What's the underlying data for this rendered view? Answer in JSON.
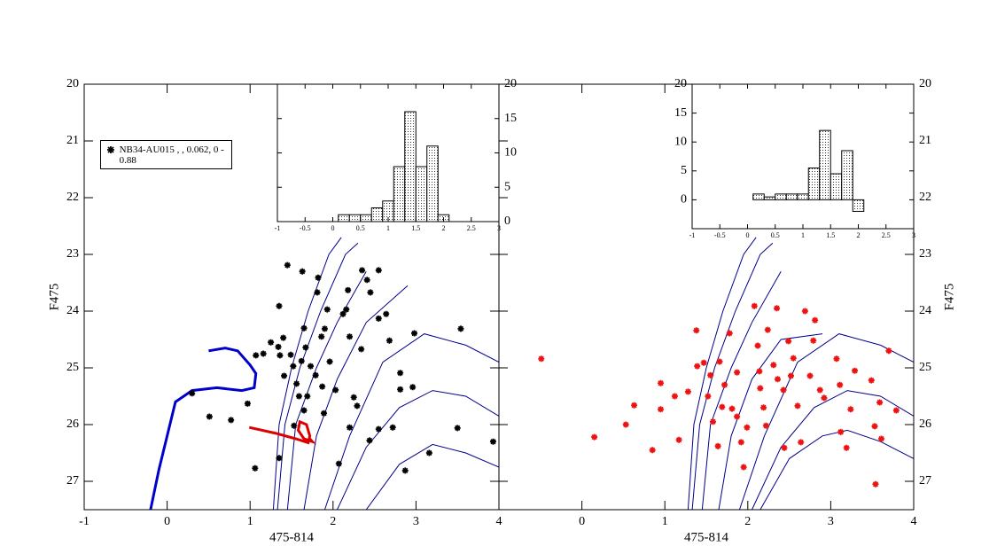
{
  "chart_data": [
    {
      "type": "scatter",
      "xlabel": "475-814",
      "ylabel": "F475",
      "xlim": [
        -1,
        4
      ],
      "ylim": [
        20,
        27.5
      ],
      "y_inverted": true,
      "xticks": [
        -1,
        0,
        1,
        2,
        3,
        4
      ],
      "yticks": [
        20,
        21,
        22,
        23,
        24,
        25,
        26,
        27
      ],
      "legend_loc": "upper left",
      "series": [
        {
          "name": "NB34-AU015 ,   , 0.062, 0 - 0.88",
          "color": "#000000",
          "x": [
            1.45,
            1.35,
            1.63,
            1.82,
            1.81,
            1.9,
            1.93,
            2.12,
            2.35,
            2.41,
            2.45,
            2.18,
            2.16,
            2.2,
            2.34,
            2.55,
            2.55,
            2.64,
            2.68,
            2.81,
            2.81,
            2.98,
            2.96,
            3.54,
            1.36,
            1.25,
            1.4,
            1.49,
            1.52,
            1.41,
            1.56,
            1.67,
            1.62,
            1.73,
            1.79,
            1.86,
            1.87,
            1.89,
            1.96,
            2.03,
            1.59,
            1.69,
            1.65,
            2.25,
            2.29,
            2.2,
            2.44,
            2.07,
            1.35,
            1.06,
            0.97,
            0.77,
            0.51,
            0.3,
            1.16,
            1.07,
            3.5,
            3.93,
            3.16,
            2.87,
            2.72,
            2.55,
            1.53,
            1.65,
            1.34
          ],
          "y": [
            23.19,
            23.91,
            23.3,
            23.41,
            23.67,
            24.31,
            23.97,
            24.05,
            23.28,
            23.45,
            23.67,
            23.63,
            23.97,
            24.45,
            24.67,
            23.28,
            24.13,
            24.05,
            24.52,
            25.09,
            25.38,
            24.39,
            25.34,
            24.31,
            24.78,
            24.55,
            24.47,
            24.77,
            24.97,
            25.14,
            25.28,
            24.64,
            24.88,
            24.97,
            25.13,
            24.45,
            25.33,
            25.8,
            24.89,
            25.39,
            25.5,
            25.5,
            25.75,
            25.52,
            25.67,
            26.05,
            26.28,
            26.69,
            26.59,
            26.77,
            25.63,
            25.92,
            25.86,
            25.45,
            24.75,
            24.78,
            26.06,
            26.3,
            26.5,
            26.81,
            26.05,
            26.08,
            26.02,
            24.3,
            24.63
          ]
        }
      ],
      "lines": [
        {
          "color": "#00008b",
          "linewidth": 1,
          "x": [
            1.28,
            1.35,
            1.5,
            1.7,
            1.95,
            2.1
          ],
          "y": [
            27.5,
            26,
            25,
            24,
            23,
            22.7
          ]
        },
        {
          "color": "#00008b",
          "linewidth": 1,
          "x": [
            1.33,
            1.42,
            1.6,
            1.85,
            2.15,
            2.3
          ],
          "y": [
            27.5,
            26,
            25,
            24,
            23,
            22.8
          ]
        },
        {
          "color": "#00008b",
          "linewidth": 1,
          "x": [
            1.45,
            1.55,
            1.8,
            2.05,
            2.4
          ],
          "y": [
            27.5,
            26,
            25,
            24.2,
            23.3
          ]
        },
        {
          "color": "#00008b",
          "linewidth": 1,
          "x": [
            1.65,
            1.8,
            2.05,
            2.4,
            2.9
          ],
          "y": [
            27.5,
            26.2,
            25.2,
            24.2,
            23.55
          ]
        },
        {
          "color": "#00008b",
          "linewidth": 1,
          "x": [
            1.9,
            2.2,
            2.6,
            3.1,
            3.6,
            4.0
          ],
          "y": [
            27.5,
            26.2,
            24.9,
            24.4,
            24.6,
            24.9
          ]
        },
        {
          "color": "#00008b",
          "linewidth": 1,
          "x": [
            2.05,
            2.4,
            2.8,
            3.2,
            3.6,
            4.0
          ],
          "y": [
            27.5,
            26.4,
            25.7,
            25.4,
            25.5,
            25.85
          ]
        },
        {
          "color": "#00008b",
          "linewidth": 1,
          "x": [
            2.4,
            2.8,
            3.2,
            3.6,
            4.0
          ],
          "y": [
            27.5,
            26.7,
            26.35,
            26.5,
            26.75
          ]
        },
        {
          "color": "#0000cc",
          "linewidth": 3,
          "x": [
            -0.2,
            -0.1,
            0.0,
            0.1,
            0.3,
            0.6,
            0.9,
            1.05,
            1.07,
            1.0,
            0.85,
            0.7,
            0.5
          ],
          "y": [
            27.5,
            26.8,
            26.2,
            25.6,
            25.4,
            25.35,
            25.4,
            25.35,
            25.1,
            24.95,
            24.7,
            24.65,
            24.7
          ]
        },
        {
          "color": "#dd0000",
          "linewidth": 3,
          "x": [
            0.99,
            1.3,
            1.55,
            1.7,
            1.72,
            1.68,
            1.6,
            1.58,
            1.65,
            1.75,
            1.72
          ],
          "y": [
            26.05,
            26.15,
            26.25,
            26.32,
            26.2,
            26.0,
            25.95,
            26.1,
            26.25,
            26.3,
            26.25
          ]
        }
      ]
    },
    {
      "type": "scatter",
      "xlabel": "475-814",
      "ylabel": "F475",
      "xlim": [
        -1,
        4
      ],
      "ylim": [
        20,
        27.5
      ],
      "y_inverted": true,
      "xticks": [
        0,
        1,
        2,
        3,
        4
      ],
      "yticks": [
        20,
        21,
        22,
        23,
        24,
        25,
        26,
        27
      ],
      "series": [
        {
          "color": "#ee1111",
          "x": [
            -0.49,
            0.15,
            0.53,
            0.63,
            0.85,
            0.95,
            0.95,
            1.12,
            1.17,
            1.28,
            1.39,
            1.38,
            1.47,
            1.52,
            1.55,
            1.58,
            1.64,
            1.66,
            1.72,
            1.78,
            1.81,
            1.87,
            1.92,
            1.95,
            1.99,
            2.08,
            2.12,
            2.14,
            2.15,
            2.19,
            2.22,
            2.24,
            2.31,
            2.35,
            2.36,
            2.43,
            2.44,
            2.49,
            2.52,
            2.55,
            2.6,
            2.64,
            2.69,
            2.75,
            2.79,
            2.81,
            2.87,
            2.92,
            3.07,
            3.12,
            3.11,
            3.19,
            3.24,
            3.29,
            3.49,
            3.53,
            3.54,
            3.59,
            3.61,
            3.7,
            3.79,
            1.69,
            1.87
          ],
          "y": [
            24.84,
            26.22,
            26.0,
            25.66,
            26.45,
            25.27,
            25.73,
            25.5,
            26.27,
            25.42,
            24.97,
            24.34,
            24.91,
            25.5,
            25.13,
            25.95,
            26.38,
            24.89,
            25.3,
            24.39,
            25.72,
            25.08,
            26.31,
            26.75,
            26.05,
            23.91,
            24.61,
            25.06,
            25.36,
            25.7,
            26.02,
            24.33,
            24.95,
            23.95,
            25.2,
            25.39,
            26.41,
            24.53,
            25.14,
            24.83,
            25.67,
            26.31,
            24.0,
            25.14,
            24.52,
            24.16,
            25.39,
            25.53,
            24.84,
            26.13,
            25.3,
            26.41,
            25.73,
            25.05,
            25.22,
            26.03,
            27.05,
            25.61,
            26.25,
            24.7,
            25.75,
            25.69,
            25.86
          ]
        }
      ],
      "lines": [
        {
          "color": "#00008b",
          "linewidth": 1,
          "x": [
            1.28,
            1.35,
            1.5,
            1.7,
            1.95,
            2.1
          ],
          "y": [
            27.5,
            26,
            25,
            24,
            23,
            22.7
          ]
        },
        {
          "color": "#00008b",
          "linewidth": 1,
          "x": [
            1.33,
            1.42,
            1.6,
            1.85,
            2.15,
            2.3
          ],
          "y": [
            27.5,
            26,
            25,
            24,
            23,
            22.8
          ]
        },
        {
          "color": "#00008b",
          "linewidth": 1,
          "x": [
            1.45,
            1.55,
            1.8,
            2.05,
            2.4
          ],
          "y": [
            27.5,
            26,
            25,
            24.2,
            23.3
          ]
        },
        {
          "color": "#00008b",
          "linewidth": 1,
          "x": [
            1.65,
            1.8,
            2.05,
            2.4,
            2.9
          ],
          "y": [
            27.5,
            26.2,
            25.2,
            24.5,
            24.4
          ]
        },
        {
          "color": "#00008b",
          "linewidth": 1,
          "x": [
            1.9,
            2.2,
            2.6,
            3.1,
            3.6,
            4.0
          ],
          "y": [
            27.5,
            26.2,
            24.9,
            24.4,
            24.6,
            24.9
          ]
        },
        {
          "color": "#00008b",
          "linewidth": 1,
          "x": [
            2.05,
            2.4,
            2.8,
            3.2,
            3.6,
            4.0
          ],
          "y": [
            27.5,
            26.4,
            25.7,
            25.4,
            25.5,
            25.85
          ]
        },
        {
          "color": "#00008b",
          "linewidth": 1,
          "x": [
            2.15,
            2.5,
            2.9,
            3.2,
            3.6,
            4.0
          ],
          "y": [
            27.5,
            26.6,
            26.2,
            26.1,
            26.3,
            26.6
          ]
        }
      ]
    },
    {
      "type": "histogram",
      "xlim": [
        -1,
        3
      ],
      "ylim": [
        0,
        20
      ],
      "xticks": [
        -1,
        -0.5,
        0,
        0.5,
        1,
        1.5,
        2,
        2.5,
        3
      ],
      "yticks": [
        0,
        5,
        10,
        15,
        20
      ],
      "bins": [
        0.1,
        0.3,
        0.5,
        0.7,
        0.9,
        1.1,
        1.3,
        1.5,
        1.7,
        1.9,
        2.1
      ],
      "counts": [
        1,
        1,
        1,
        2,
        3,
        8,
        16,
        8,
        11,
        1
      ]
    },
    {
      "type": "histogram",
      "xlim": [
        -1,
        3
      ],
      "ylim": [
        -5,
        20
      ],
      "xticks": [
        -1,
        -0.5,
        0,
        0.5,
        1,
        1.5,
        2,
        2.5,
        3
      ],
      "yticks": [
        0,
        5,
        10,
        15,
        20
      ],
      "bins": [
        -0.5,
        -0.3,
        -0.1,
        0.1,
        0.3,
        0.5,
        0.7,
        0.9,
        1.1,
        1.3,
        1.5,
        1.7,
        1.9,
        2.1
      ],
      "counts": [
        0,
        0,
        0,
        1,
        0.5,
        1,
        1,
        1,
        5.5,
        12,
        4.5,
        8.5,
        -2
      ]
    }
  ]
}
